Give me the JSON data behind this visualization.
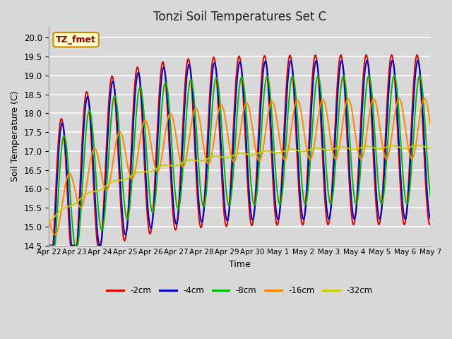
{
  "title": "Tonzi Soil Temperatures Set C",
  "xlabel": "Time",
  "ylabel": "Soil Temperature (C)",
  "ylim": [
    14.5,
    20.3
  ],
  "annotation": "TZ_fmet",
  "annotation_color": "#880000",
  "annotation_bg": "#ffffcc",
  "annotation_border": "#cc8800",
  "series_colors": [
    "#dd0000",
    "#0000cc",
    "#00bb00",
    "#ff8800",
    "#cccc00"
  ],
  "series_labels": [
    "-2cm",
    "-4cm",
    "-8cm",
    "-16cm",
    "-32cm"
  ],
  "x_tick_labels": [
    "Apr 22",
    "Apr 23",
    "Apr 24",
    "Apr 25",
    "Apr 26",
    "Apr 27",
    "Apr 28",
    "Apr 29",
    "Apr 30",
    "May 1",
    "May 2",
    "May 3",
    "May 4",
    "May 5",
    "May 6",
    "May 7"
  ],
  "background_color": "#d8d8d8",
  "grid_color": "#ffffff",
  "line_width": 1.4,
  "n_points": 480
}
